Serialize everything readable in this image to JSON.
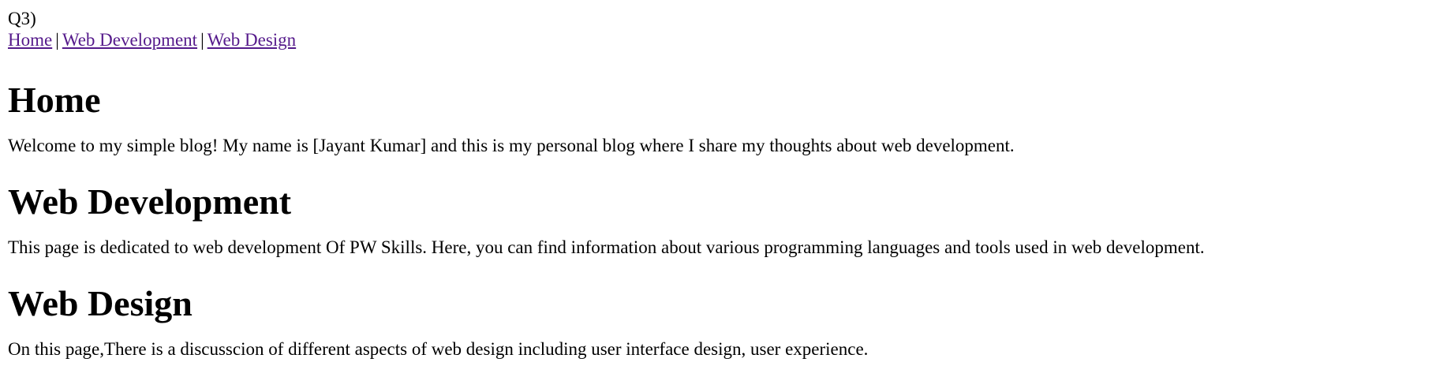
{
  "question_label": "Q3)",
  "nav": {
    "home": "Home",
    "sep1": "|",
    "web_development": "Web Development",
    "sep2": "|",
    "web_design": "Web Design"
  },
  "sections": {
    "home": {
      "heading": "Home",
      "text": "Welcome to my simple blog! My name is [Jayant Kumar] and this is my personal blog where I share my thoughts about web development."
    },
    "web_development": {
      "heading": "Web Development",
      "text": "This page is dedicated to web development Of PW Skills. Here, you can find information about various programming languages and tools used in web development."
    },
    "web_design": {
      "heading": "Web Design",
      "text": "On this page,There is a discusscion of different aspects of web design including user interface design, user experience."
    }
  },
  "colors": {
    "link_visited": "#551a8b",
    "text": "#000000",
    "background": "#ffffff"
  }
}
